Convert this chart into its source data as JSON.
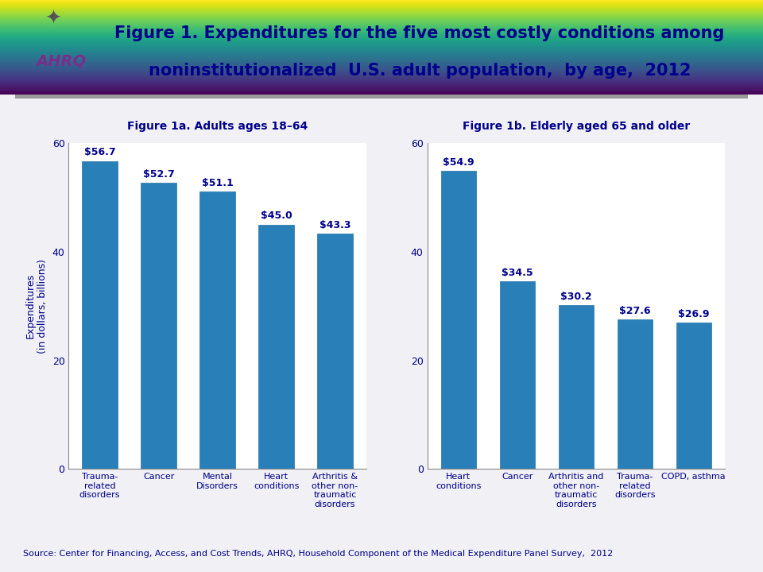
{
  "title_line1": "Figure 1. Expenditures for the five most costly conditions among",
  "title_line2": "noninstitutionalized  U.S. adult population,  by age,  2012",
  "source_text": "Source: Center for Financing, Access, and Cost Trends, AHRQ, Household Component of the Medical Expenditure Panel Survey,  2012",
  "fig1a_title": "Figure 1a. Adults ages 18–64",
  "fig1a_categories": [
    "Trauma-\nrelated\ndisorders",
    "Cancer",
    "Mental\nDisorders",
    "Heart\nconditions",
    "Arthritis &\nother non-\ntraumatic\ndisorders"
  ],
  "fig1a_values": [
    56.7,
    52.7,
    51.1,
    45.0,
    43.3
  ],
  "fig1a_labels": [
    "$56.7",
    "$52.7",
    "$51.1",
    "$45.0",
    "$43.3"
  ],
  "fig1b_title": "Figure 1b. Elderly aged 65 and older",
  "fig1b_categories": [
    "Heart\nconditions",
    "Cancer",
    "Arthritis and\nother non-\ntraumatic\ndisorders",
    "Trauma-\nrelated\ndisorders",
    "COPD, asthma"
  ],
  "fig1b_values": [
    54.9,
    34.5,
    30.2,
    27.6,
    26.9
  ],
  "fig1b_labels": [
    "$54.9",
    "$34.5",
    "$30.2",
    "$27.6",
    "$26.9"
  ],
  "bar_color": "#2980B9",
  "bar_edge_color": "#2471A3",
  "ylabel": "Expenditures\n(in dollars, billions)",
  "ylim": [
    0,
    60
  ],
  "yticks": [
    0,
    20,
    40,
    60
  ],
  "title_color": "#00008B",
  "label_color": "#00008B",
  "tick_color": "#00008B",
  "source_color": "#00008B",
  "header_bg_top": "#c8c8d0",
  "header_bg_bottom": "#e8e8f0",
  "body_bg_color": "#f0f0f5",
  "title_fontsize": 15,
  "subtitle_fontsize": 10,
  "bar_label_fontsize": 9,
  "axis_label_fontsize": 9,
  "tick_fontsize": 9,
  "source_fontsize": 8
}
